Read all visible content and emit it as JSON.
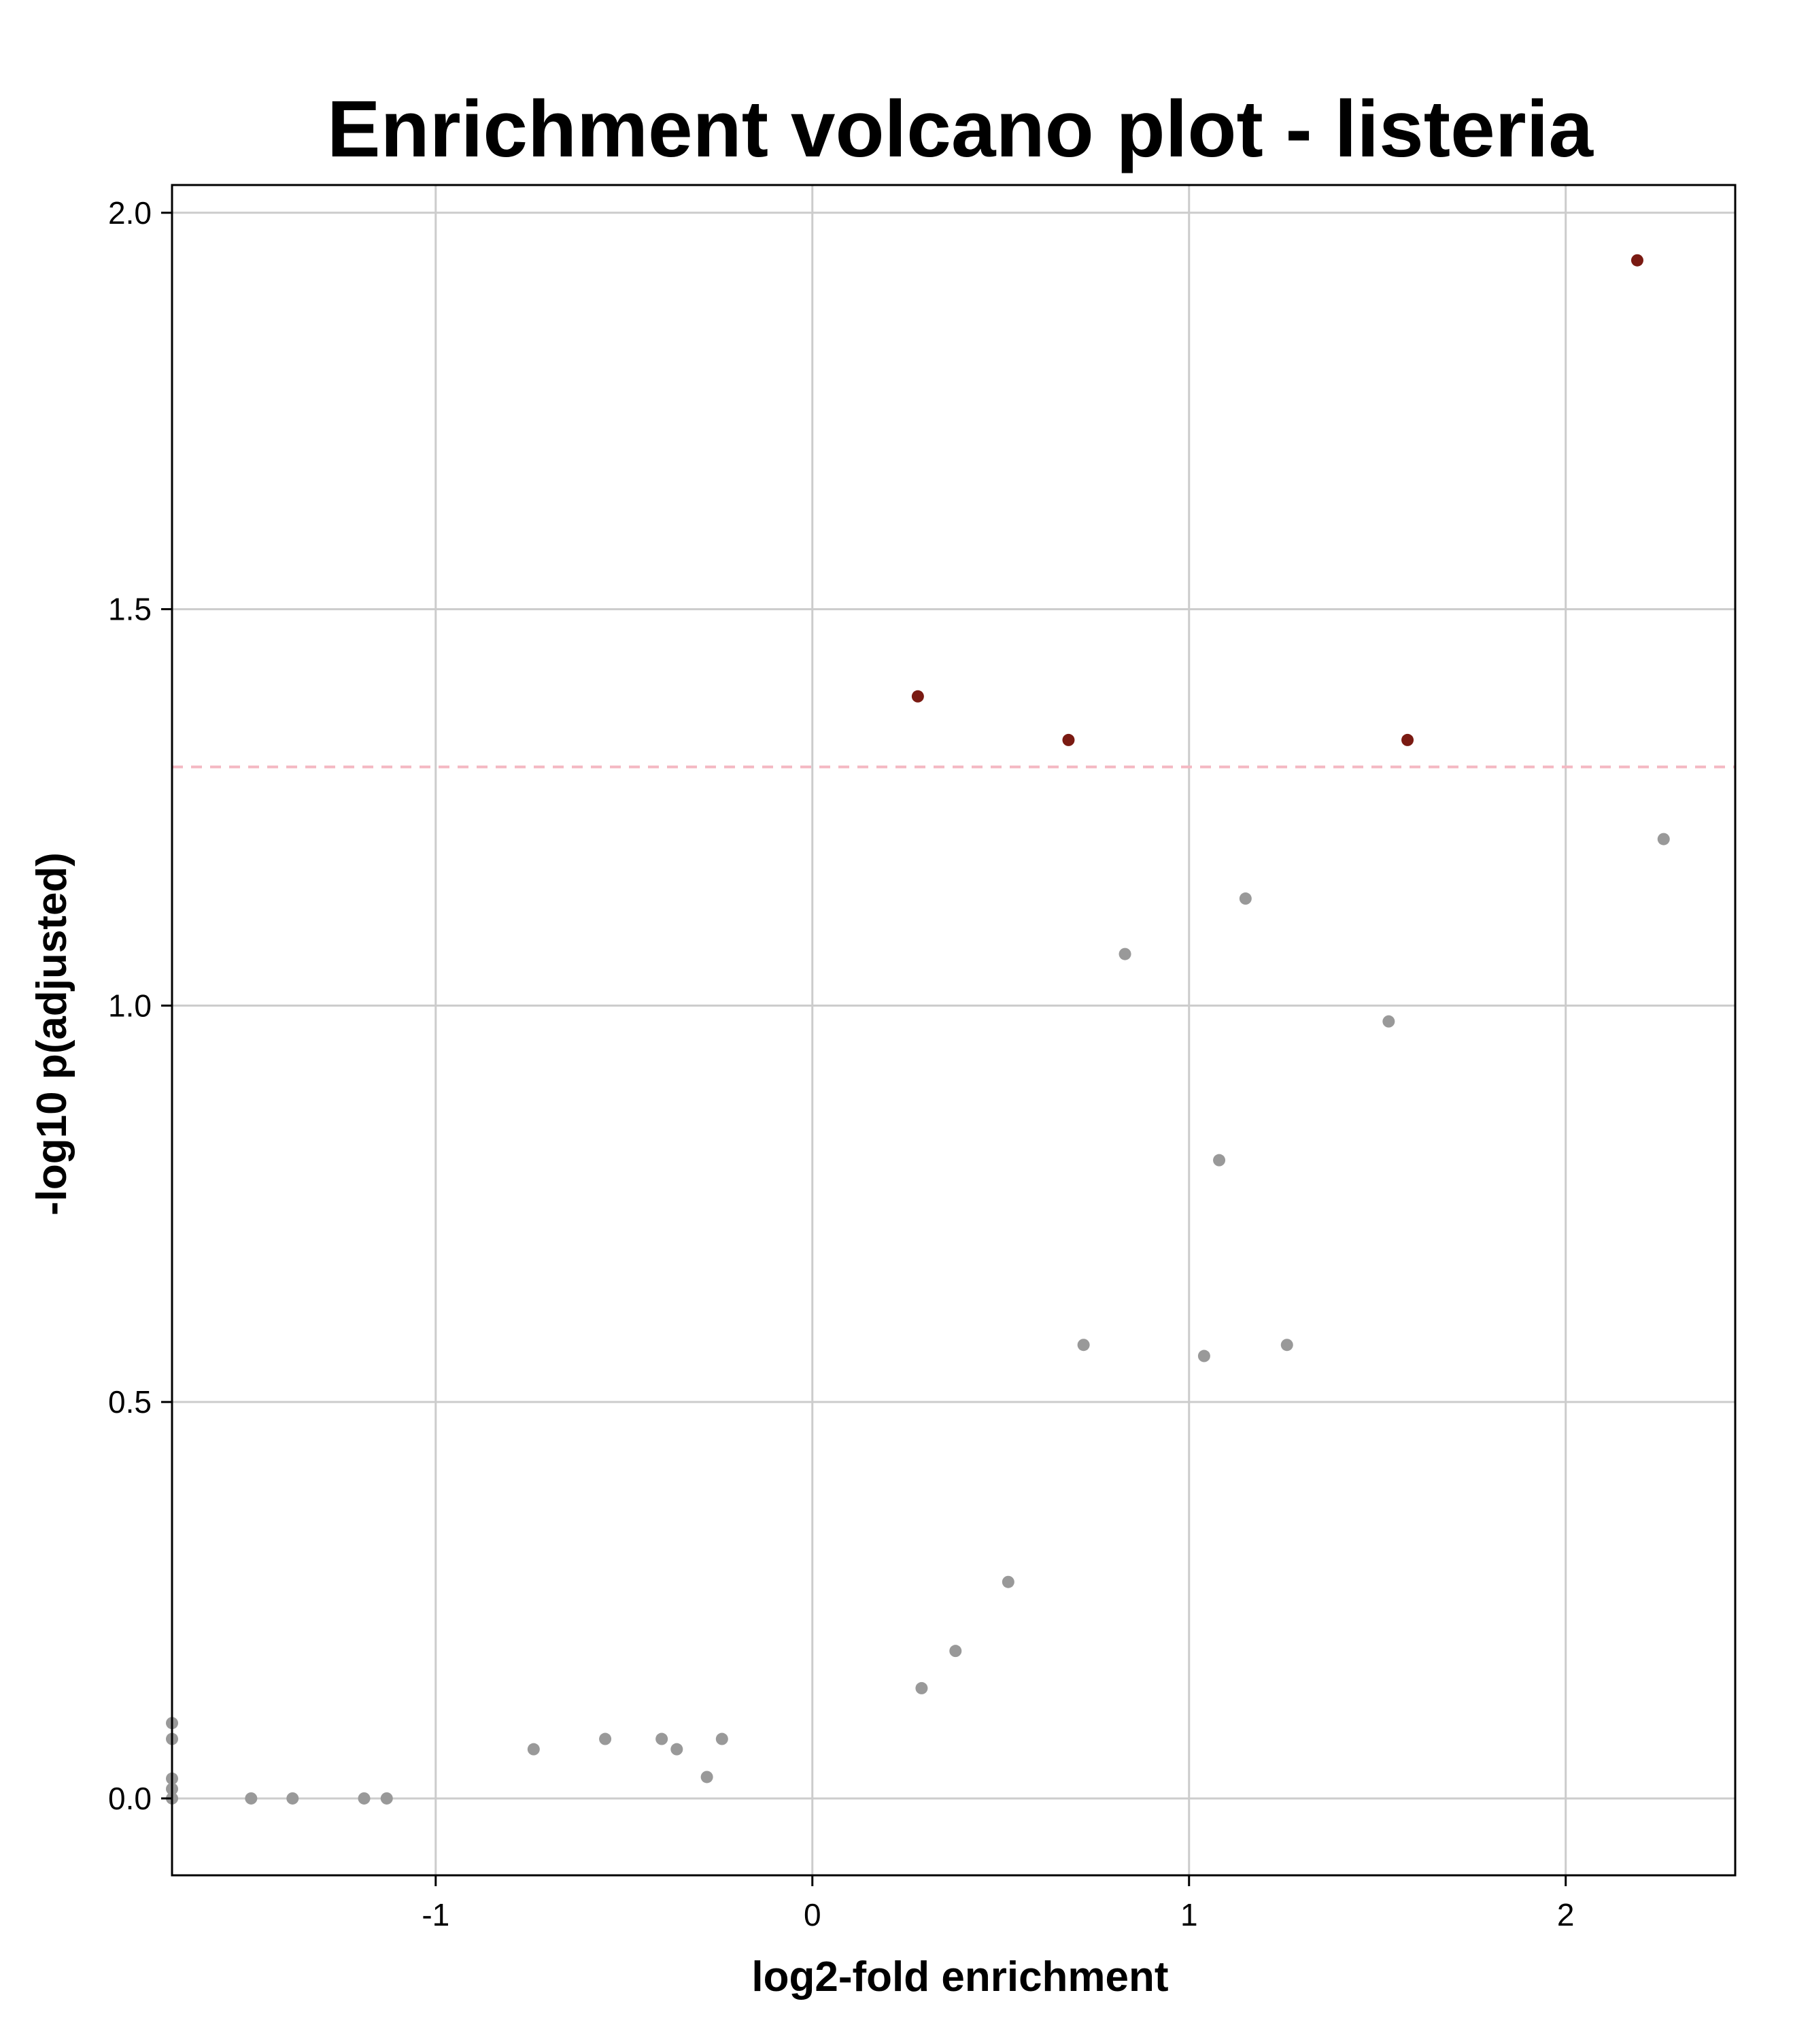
{
  "chart_data": {
    "type": "scatter",
    "title": "Enrichment volcano plot -  listeria",
    "xlabel": "log2-fold enrichment",
    "ylabel": "-log10 p(adjusted)",
    "xlim": [
      -1.7,
      2.45
    ],
    "ylim": [
      -0.097,
      2.035
    ],
    "xticks": [
      -1,
      0,
      1,
      2
    ],
    "xtick_labels": [
      "-1",
      "0",
      "1",
      "2"
    ],
    "yticks": [
      0.0,
      0.5,
      1.0,
      1.5,
      2.0
    ],
    "ytick_labels": [
      "0.0",
      "0.5",
      "1.0",
      "1.5",
      "2.0"
    ],
    "grid": true,
    "threshold_y": 1.301,
    "colors": {
      "significant": "#7a1a12",
      "not_significant": "#999999",
      "threshold": "#f4b8c2",
      "grid": "#cccccc",
      "frame": "#000000"
    },
    "series": [
      {
        "significant": true,
        "points": [
          {
            "x": 2.19,
            "y": 1.94
          },
          {
            "x": 0.28,
            "y": 1.39
          },
          {
            "x": 0.68,
            "y": 1.335
          },
          {
            "x": 1.58,
            "y": 1.335
          }
        ]
      },
      {
        "significant": false,
        "points": [
          {
            "x": 2.26,
            "y": 1.21
          },
          {
            "x": 1.15,
            "y": 1.135
          },
          {
            "x": 0.83,
            "y": 1.065
          },
          {
            "x": 1.53,
            "y": 0.98
          },
          {
            "x": 1.08,
            "y": 0.805
          },
          {
            "x": 0.72,
            "y": 0.572
          },
          {
            "x": 1.04,
            "y": 0.558
          },
          {
            "x": 1.26,
            "y": 0.572
          },
          {
            "x": 0.52,
            "y": 0.273
          },
          {
            "x": 0.38,
            "y": 0.186
          },
          {
            "x": 0.29,
            "y": 0.139
          },
          {
            "x": -0.74,
            "y": 0.062
          },
          {
            "x": -0.55,
            "y": 0.075
          },
          {
            "x": -0.4,
            "y": 0.075
          },
          {
            "x": -0.36,
            "y": 0.062
          },
          {
            "x": -0.24,
            "y": 0.075
          },
          {
            "x": -0.28,
            "y": 0.027
          },
          {
            "x": -1.49,
            "y": 0.0
          },
          {
            "x": -1.38,
            "y": 0.0
          },
          {
            "x": -1.19,
            "y": 0.0
          },
          {
            "x": -1.13,
            "y": 0.0
          },
          {
            "x": -1.7,
            "y": 0.095
          },
          {
            "x": -1.7,
            "y": 0.075
          },
          {
            "x": -1.7,
            "y": 0.025
          },
          {
            "x": -1.7,
            "y": 0.012
          },
          {
            "x": -1.7,
            "y": 0.0
          }
        ]
      }
    ]
  }
}
